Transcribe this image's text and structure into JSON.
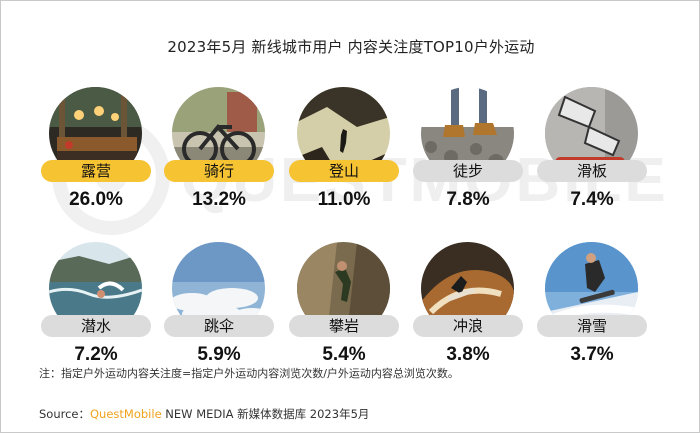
{
  "title": "2023年5月 新线城市用户 内容关注度TOP10户外运动",
  "watermark_text": "QUESTMOBILE",
  "note": "注：指定户外运动内容关注度=指定户外运动内容浏览次数/户外运动内容总浏览次数。",
  "source": {
    "label": "Source：",
    "brand": "QuestMobile",
    "rest": " NEW MEDIA 新媒体数据库 2023年5月"
  },
  "colors": {
    "highlight": "#f6c333",
    "default": "#dcdcdc",
    "brand": "#f0a21c"
  },
  "chart_data": {
    "type": "bar",
    "title": "2023年5月 新线城市用户 内容关注度TOP10户外运动",
    "categories": [
      "露营",
      "骑行",
      "登山",
      "徒步",
      "滑板",
      "潜水",
      "跳伞",
      "攀岩",
      "冲浪",
      "滑雪"
    ],
    "values": [
      26.0,
      13.2,
      11.0,
      7.8,
      7.4,
      7.2,
      5.9,
      5.4,
      3.8,
      3.7
    ],
    "value_labels": [
      "26.0%",
      "13.2%",
      "11.0%",
      "7.8%",
      "7.4%",
      "7.2%",
      "5.9%",
      "5.4%",
      "3.8%",
      "3.7%"
    ],
    "highlighted_top": 3
  }
}
